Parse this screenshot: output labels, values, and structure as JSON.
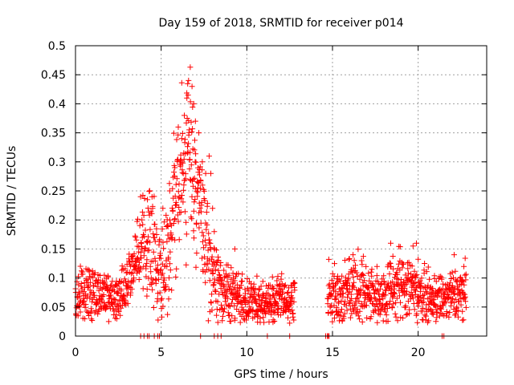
{
  "chart_data": {
    "type": "scatter",
    "title": "Day 159 of 2018, SRMTID for receiver p014",
    "xlabel": "GPS time / hours",
    "ylabel": "SRMTID / TECUs",
    "xlim": [
      0,
      24
    ],
    "ylim": [
      0,
      0.5
    ],
    "x_ticks": [
      0,
      5,
      10,
      15,
      20
    ],
    "x_tick_labels": [
      "0",
      "5",
      "10",
      "15",
      "20"
    ],
    "y_ticks": [
      0,
      0.05,
      0.1,
      0.15,
      0.2,
      0.25,
      0.3,
      0.35,
      0.4,
      0.45,
      0.5
    ],
    "y_tick_labels": [
      "0",
      "0.05",
      "0.1",
      "0.15",
      "0.2",
      "0.25",
      "0.3",
      "0.35",
      "0.4",
      "0.45",
      "0.5"
    ],
    "grid": true,
    "marker": "+",
    "series": [
      {
        "name": "SRMTID",
        "color": "#ff0000",
        "gaps": [
          [
            12.8,
            14.7
          ]
        ],
        "envelope": [
          {
            "x": 0.0,
            "y": 0.06,
            "spread": 0.02
          },
          {
            "x": 0.8,
            "y": 0.08,
            "spread": 0.025
          },
          {
            "x": 1.5,
            "y": 0.07,
            "spread": 0.02
          },
          {
            "x": 2.3,
            "y": 0.06,
            "spread": 0.02
          },
          {
            "x": 3.0,
            "y": 0.085,
            "spread": 0.02
          },
          {
            "x": 3.8,
            "y": 0.15,
            "spread": 0.04
          },
          {
            "x": 4.3,
            "y": 0.17,
            "spread": 0.05
          },
          {
            "x": 5.0,
            "y": 0.1,
            "spread": 0.035
          },
          {
            "x": 5.5,
            "y": 0.17,
            "spread": 0.05
          },
          {
            "x": 6.0,
            "y": 0.26,
            "spread": 0.06
          },
          {
            "x": 6.6,
            "y": 0.32,
            "spread": 0.07
          },
          {
            "x": 7.0,
            "y": 0.28,
            "spread": 0.07
          },
          {
            "x": 7.6,
            "y": 0.15,
            "spread": 0.05
          },
          {
            "x": 8.2,
            "y": 0.09,
            "spread": 0.03
          },
          {
            "x": 9.0,
            "y": 0.07,
            "spread": 0.025
          },
          {
            "x": 10.0,
            "y": 0.06,
            "spread": 0.02
          },
          {
            "x": 11.0,
            "y": 0.055,
            "spread": 0.02
          },
          {
            "x": 12.0,
            "y": 0.065,
            "spread": 0.02
          },
          {
            "x": 12.7,
            "y": 0.06,
            "spread": 0.02
          },
          {
            "x": 14.8,
            "y": 0.07,
            "spread": 0.025
          },
          {
            "x": 15.5,
            "y": 0.07,
            "spread": 0.025
          },
          {
            "x": 16.5,
            "y": 0.09,
            "spread": 0.03
          },
          {
            "x": 17.5,
            "y": 0.065,
            "spread": 0.02
          },
          {
            "x": 18.5,
            "y": 0.08,
            "spread": 0.03
          },
          {
            "x": 19.5,
            "y": 0.09,
            "spread": 0.03
          },
          {
            "x": 20.5,
            "y": 0.065,
            "spread": 0.02
          },
          {
            "x": 21.5,
            "y": 0.065,
            "spread": 0.02
          },
          {
            "x": 22.8,
            "y": 0.075,
            "spread": 0.025
          }
        ],
        "peak_points": [
          [
            3.8,
            0.24
          ],
          [
            4.2,
            0.235
          ],
          [
            4.5,
            0.22
          ],
          [
            5.1,
            0.22
          ],
          [
            5.5,
            0.25
          ],
          [
            5.8,
            0.29
          ],
          [
            6.0,
            0.36
          ],
          [
            6.2,
            0.34
          ],
          [
            6.35,
            0.38
          ],
          [
            6.5,
            0.41
          ],
          [
            6.6,
            0.44
          ],
          [
            6.7,
            0.463
          ],
          [
            6.8,
            0.43
          ],
          [
            6.9,
            0.4
          ],
          [
            7.0,
            0.37
          ],
          [
            7.2,
            0.35
          ],
          [
            7.4,
            0.3
          ],
          [
            7.6,
            0.28
          ],
          [
            7.8,
            0.31
          ],
          [
            7.9,
            0.28
          ],
          [
            8.0,
            0.22
          ],
          [
            8.1,
            0.18
          ],
          [
            9.3,
            0.15
          ],
          [
            16.2,
            0.14
          ],
          [
            18.4,
            0.16
          ],
          [
            19.7,
            0.155
          ],
          [
            19.9,
            0.16
          ],
          [
            22.1,
            0.14
          ]
        ],
        "zero_points": [
          3.8,
          4.0,
          4.2,
          4.3,
          4.6,
          4.8,
          4.9,
          7.3,
          8.1,
          8.3,
          8.5,
          11.2,
          12.5,
          14.6,
          14.7,
          14.75,
          14.8,
          21.4,
          21.5
        ]
      }
    ]
  }
}
